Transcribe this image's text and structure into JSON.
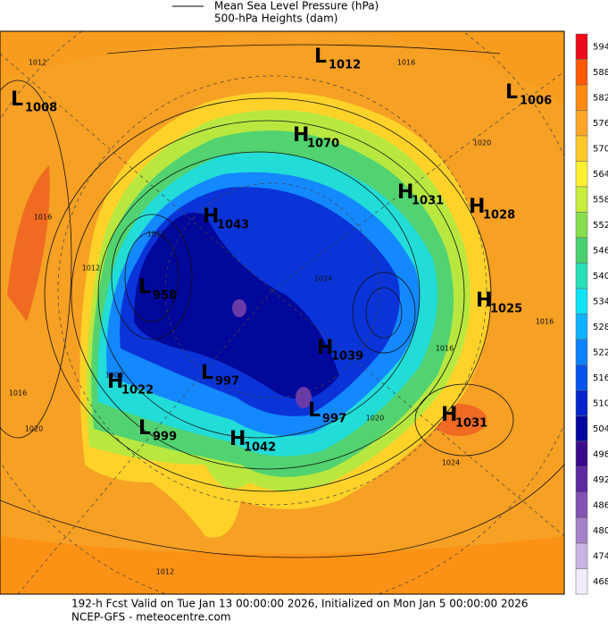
{
  "legend": [
    "Mean Sea Level Pressure (hPa)",
    "500-hPa Heights (dam)"
  ],
  "centers": [
    {
      "letter": "L",
      "value": 1012
    },
    {
      "letter": "L",
      "value": 1006
    },
    {
      "letter": "L",
      "value": 1008
    },
    {
      "letter": "H",
      "value": 1070
    },
    {
      "letter": "H",
      "value": 1031
    },
    {
      "letter": "H",
      "value": 1028
    },
    {
      "letter": "H",
      "value": 1043
    },
    {
      "letter": "L",
      "value": 958
    },
    {
      "letter": "H",
      "value": 1025
    },
    {
      "letter": "H",
      "value": 1039
    },
    {
      "letter": "L",
      "value": 997
    },
    {
      "letter": "H",
      "value": 1022
    },
    {
      "letter": "L",
      "value": 997
    },
    {
      "letter": "H",
      "value": 1031
    },
    {
      "letter": "L",
      "value": 999
    },
    {
      "letter": "H",
      "value": 1042
    }
  ],
  "contour_labels": [
    1012,
    1016,
    1016,
    1012,
    1016,
    1020,
    1008,
    1012,
    1020,
    1024,
    1016,
    1024,
    1016,
    1020,
    1012
  ],
  "colorbar": {
    "levels": [
      594,
      588,
      582,
      576,
      570,
      564,
      558,
      552,
      546,
      540,
      534,
      528,
      522,
      516,
      510,
      504,
      498,
      492,
      486,
      480,
      474,
      468
    ],
    "colors": [
      "#ee0a1a",
      "#ff5a0a",
      "#ff8a10",
      "#ffa528",
      "#ffc828",
      "#fff032",
      "#c8ee3c",
      "#86de4e",
      "#48d070",
      "#28e0b8",
      "#10e2f6",
      "#10b2ff",
      "#0c82ff",
      "#0852ee",
      "#0424cc",
      "#02069e",
      "#3a0a8c",
      "#5e28a0",
      "#8452b4",
      "#a682cc",
      "#c8b4e2",
      "#f2ecfa"
    ]
  },
  "footer": [
    "192-h Fcst Valid on Tue Jan 13 00:00:00 2026, Initialized on Mon Jan  5 00:00:00 2026",
    "NCEP-GFS - meteocentre.com"
  ]
}
